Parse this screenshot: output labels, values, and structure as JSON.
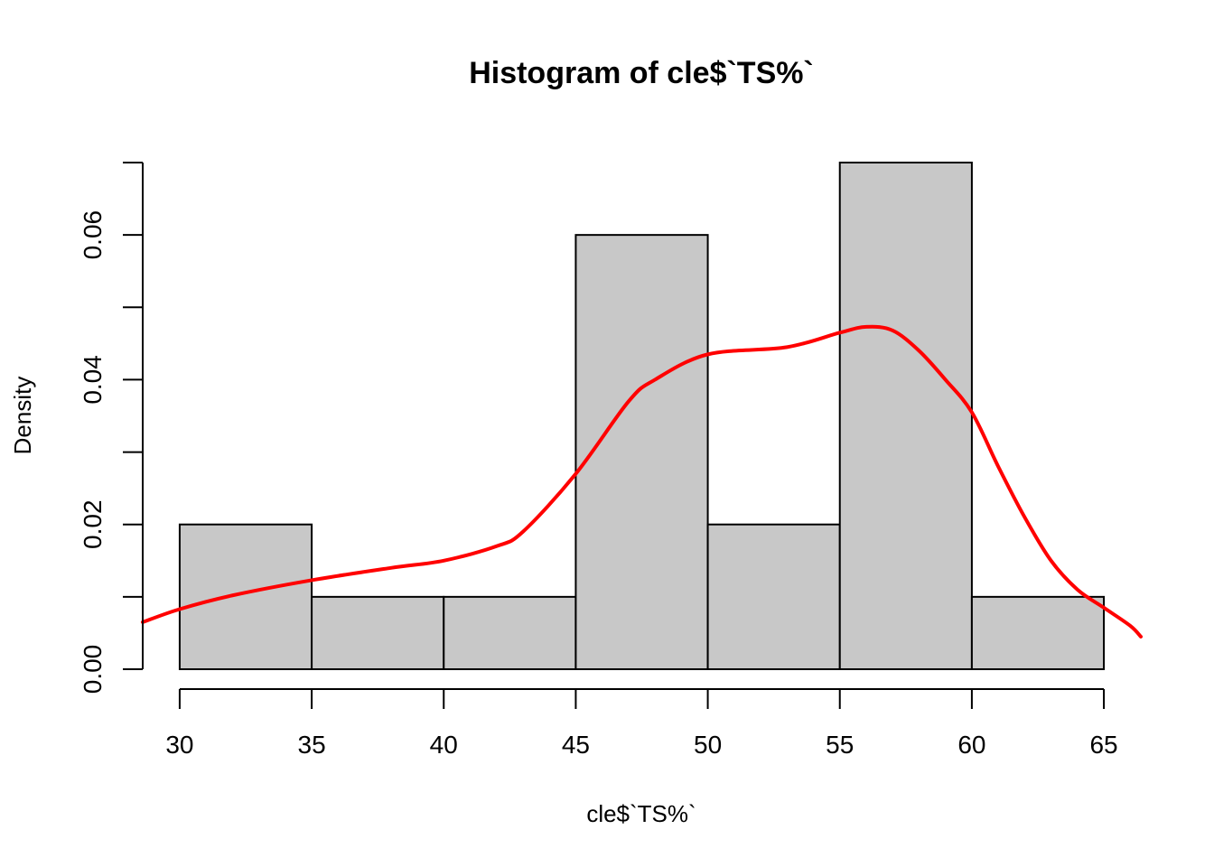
{
  "chart_data": {
    "type": "bar",
    "title": "Histogram of cle$`TS%`",
    "xlabel": "cle$`TS%`",
    "ylabel": "Density",
    "bin_edges": [
      30,
      35,
      40,
      45,
      50,
      55,
      60,
      65
    ],
    "categories": [
      "30-35",
      "35-40",
      "40-45",
      "45-50",
      "50-55",
      "55-60",
      "60-65"
    ],
    "values": [
      0.02,
      0.01,
      0.01,
      0.06,
      0.02,
      0.07,
      0.01
    ],
    "xlim": [
      28.6,
      66.4
    ],
    "ylim": [
      0,
      0.07
    ],
    "x_ticks": [
      30,
      35,
      40,
      45,
      50,
      55,
      60,
      65
    ],
    "x_tick_labels": [
      "30",
      "35",
      "40",
      "45",
      "50",
      "55",
      "60",
      "65"
    ],
    "y_ticks": [
      0,
      0.01,
      0.02,
      0.03,
      0.04,
      0.05,
      0.06,
      0.07
    ],
    "y_tick_labels_shown": [
      "0.00",
      "0.02",
      "0.04",
      "0.06"
    ],
    "grid": false,
    "legend": "none",
    "bar_color": "#c8c8c8",
    "bar_edge_color": "#000000",
    "density_curve": {
      "color": "#ff0000",
      "x": [
        28.6,
        30,
        32,
        35,
        38,
        40,
        42,
        43,
        45,
        47,
        48,
        50,
        53,
        55,
        56,
        57,
        58,
        59,
        60,
        61,
        62,
        63,
        64,
        65,
        66,
        66.4
      ],
      "y": [
        0.0065,
        0.0083,
        0.0102,
        0.0123,
        0.014,
        0.015,
        0.017,
        0.019,
        0.027,
        0.037,
        0.04,
        0.0435,
        0.0445,
        0.0465,
        0.0473,
        0.0468,
        0.044,
        0.04,
        0.0355,
        0.028,
        0.021,
        0.015,
        0.011,
        0.0085,
        0.006,
        0.0045
      ]
    }
  }
}
